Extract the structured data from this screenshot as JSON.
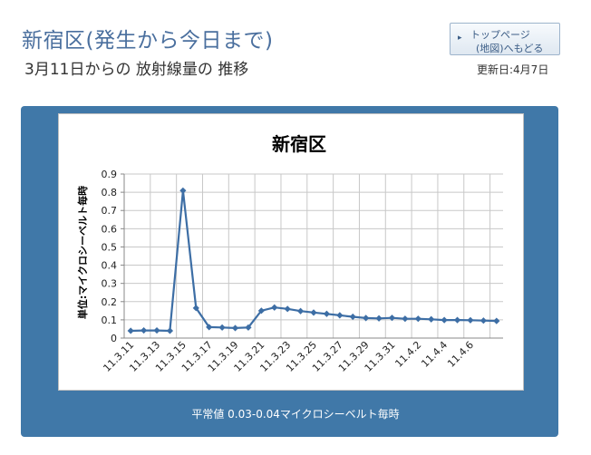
{
  "header": {
    "title": "新宿区(発生から今日まで)",
    "subtitle": "3月11日からの 放射線量の 推移",
    "top_button_line1": "トップページ",
    "top_button_line2": "(地図)へもどる",
    "top_button_arrow": "▸",
    "updated": "更新日:4月7日"
  },
  "colors": {
    "accent": "#4a6f9e",
    "panel": "#4078a8",
    "series": "#3d6ea5"
  },
  "chart_data": {
    "type": "line",
    "title": "新宿区",
    "ylabel": "単位:マイクロシーベルト毎時",
    "ylim": [
      0,
      0.9
    ],
    "yticks": [
      "0",
      "0.1",
      "0.2",
      "0.3",
      "0.4",
      "0.5",
      "0.6",
      "0.7",
      "0.8",
      "0.9"
    ],
    "grid": true,
    "x_tick_labels": [
      "11.3.11",
      "11.3.13",
      "11.3.15",
      "11.3.17",
      "11.3.19",
      "11.3.21",
      "11.3.23",
      "11.3.25",
      "11.3.27",
      "11.3.29",
      "11.3.31",
      "11.4.2",
      "11.4.4",
      "11.4.6"
    ],
    "series": [
      {
        "values": [
          0.04,
          0.042,
          0.042,
          0.04,
          0.809,
          0.165,
          0.06,
          0.058,
          0.055,
          0.058,
          0.15,
          0.168,
          0.16,
          0.148,
          0.14,
          0.133,
          0.125,
          0.117,
          0.11,
          0.108,
          0.111,
          0.106,
          0.106,
          0.103,
          0.099,
          0.099,
          0.098,
          0.096,
          0.094
        ]
      }
    ]
  },
  "footer": {
    "note": "平常値  0.03-0.04マイクロシーベルト毎時"
  }
}
